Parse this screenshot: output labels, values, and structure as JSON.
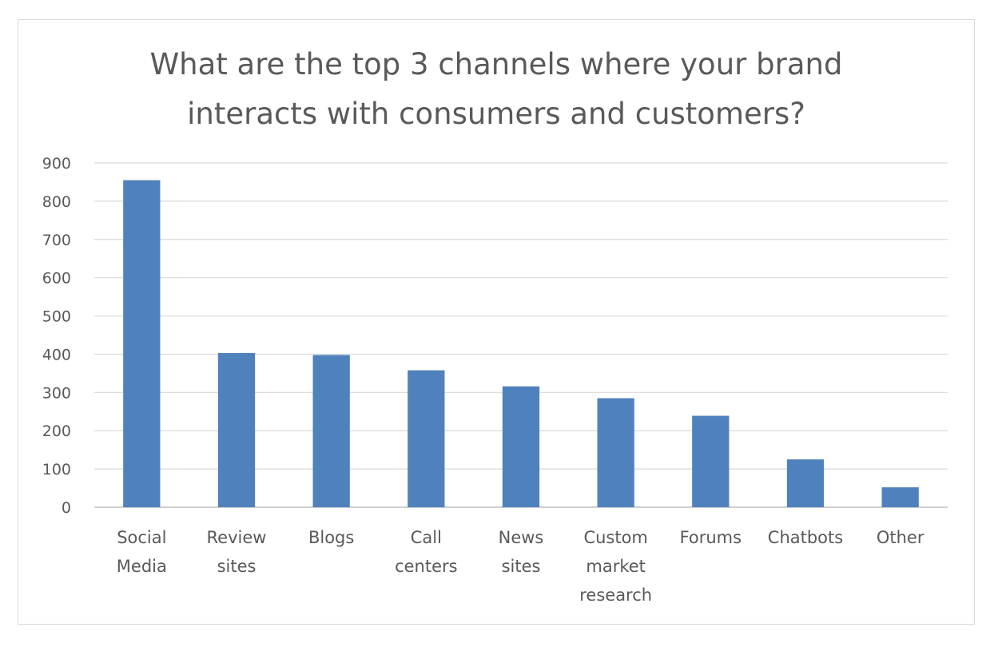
{
  "chart_data": {
    "type": "bar",
    "title_lines": [
      "What are the top 3 channels where your brand",
      "interacts with consumers and customers?"
    ],
    "categories": [
      [
        "Social",
        "Media"
      ],
      [
        "Review",
        "sites"
      ],
      [
        "Blogs"
      ],
      [
        "Call",
        "centers"
      ],
      [
        "News",
        "sites"
      ],
      [
        "Custom",
        "market",
        "research"
      ],
      [
        "Forums"
      ],
      [
        "Chatbots"
      ],
      [
        "Other"
      ]
    ],
    "values": [
      855,
      403,
      398,
      358,
      316,
      285,
      239,
      125,
      52
    ],
    "ylim": [
      0,
      900
    ],
    "yticks": [
      0,
      100,
      200,
      300,
      400,
      500,
      600,
      700,
      800,
      900
    ],
    "grid": true,
    "legend": "none",
    "colors": {
      "bar": "#4f81bd",
      "grid": "#d9d9d9",
      "axis": "#bfbfbf",
      "text": "#595959"
    }
  }
}
